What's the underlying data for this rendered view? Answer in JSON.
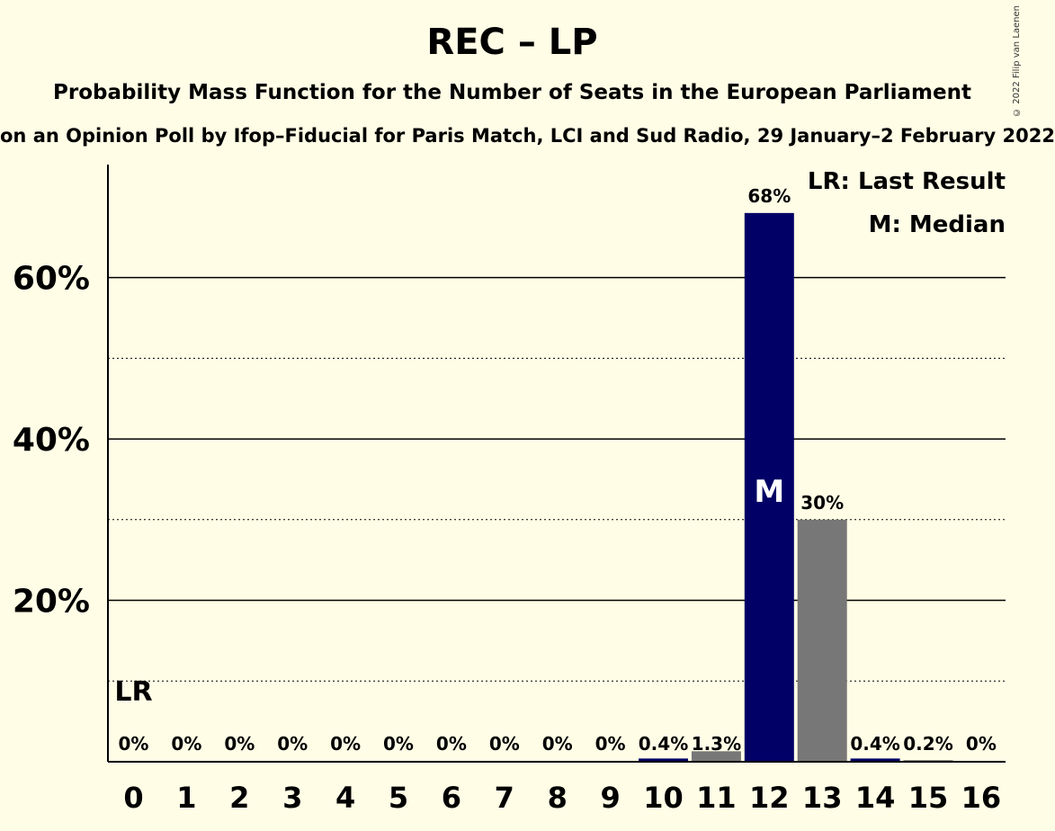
{
  "title": "REC – LP",
  "subtitle": "Probability Mass Function for the Number of Seats in the European Parliament",
  "subtitle2": "on an Opinion Poll by Ifop–Fiducial for Paris Match, LCI and Sud Radio, 29 January–2 February 2022",
  "copyright": "© 2022 Filip van Laenen",
  "legend": {
    "last_result": "LR: Last Result",
    "median": "M: Median"
  },
  "markers": {
    "last_result_label": "LR",
    "median_label": "M"
  },
  "colors": {
    "background": "#fffde6",
    "median_bar": "#000066",
    "bar": "#777777"
  },
  "chart_data": {
    "type": "bar",
    "categories": [
      "0",
      "1",
      "2",
      "3",
      "4",
      "5",
      "6",
      "7",
      "8",
      "9",
      "10",
      "11",
      "12",
      "13",
      "14",
      "15",
      "16"
    ],
    "values": [
      0,
      0,
      0,
      0,
      0,
      0,
      0,
      0,
      0,
      0,
      0.4,
      1.3,
      68,
      30,
      0.4,
      0.2,
      0
    ],
    "value_labels": [
      "0%",
      "0%",
      "0%",
      "0%",
      "0%",
      "0%",
      "0%",
      "0%",
      "0%",
      "0%",
      "0.4%",
      "1.3%",
      "68%",
      "30%",
      "0.4%",
      "0.2%",
      "0%"
    ],
    "ylim": [
      0,
      74
    ],
    "yticks": [
      20,
      40,
      60
    ],
    "ytick_labels": [
      "20%",
      "40%",
      "60%"
    ],
    "minor_gridlines": [
      10,
      30,
      50
    ],
    "last_result": "0",
    "median": "12",
    "series_colors": [
      "#000066",
      "#000066",
      "#000066",
      "#000066",
      "#000066",
      "#000066",
      "#000066",
      "#000066",
      "#000066",
      "#000066",
      "#000066",
      "#777777",
      "#000066",
      "#777777",
      "#000066",
      "#777777",
      "#777777"
    ],
    "grid": true,
    "legend_position": "top-right"
  }
}
